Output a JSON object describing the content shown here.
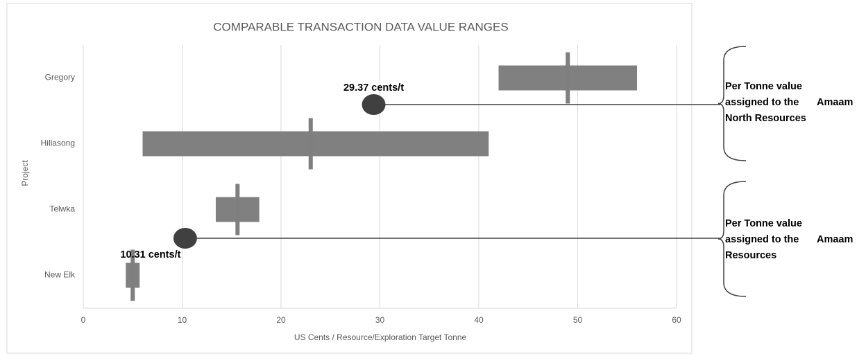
{
  "chart_data": {
    "type": "range_bar",
    "title": "COMPARABLE TRANSACTION DATA VALUE RANGES",
    "x_label": "US Cents / Resource/Exploration Target Tonne",
    "y_label": "Project",
    "categories": [
      "Gregory",
      "Hillasong",
      "Telwka",
      "New Elk"
    ],
    "low": [
      42,
      6,
      13.4,
      4.3
    ],
    "high": [
      56,
      41,
      17.8,
      5.7
    ],
    "median": [
      49,
      23,
      15.6,
      5
    ],
    "color": "#808080",
    "median_color": "#7f7f7f",
    "xlim": [
      0,
      60
    ],
    "xticks": [
      0,
      10,
      20,
      30,
      40,
      50,
      60
    ],
    "grid": true,
    "markers": [
      {
        "value": 29.37,
        "label": "29.37 cents/t",
        "color": "#404040"
      },
      {
        "value": 10.31,
        "label": "10.31 cents/t",
        "color": "#404040"
      }
    ],
    "annotations": [
      {
        "lines": [
          "Per Tonne value",
          "assigned to the",
          "North Resources"
        ],
        "aside": "Amaam"
      },
      {
        "lines": [
          "Per Tonne value",
          "assigned to the",
          "Resources"
        ],
        "aside": "Amaam"
      }
    ]
  }
}
